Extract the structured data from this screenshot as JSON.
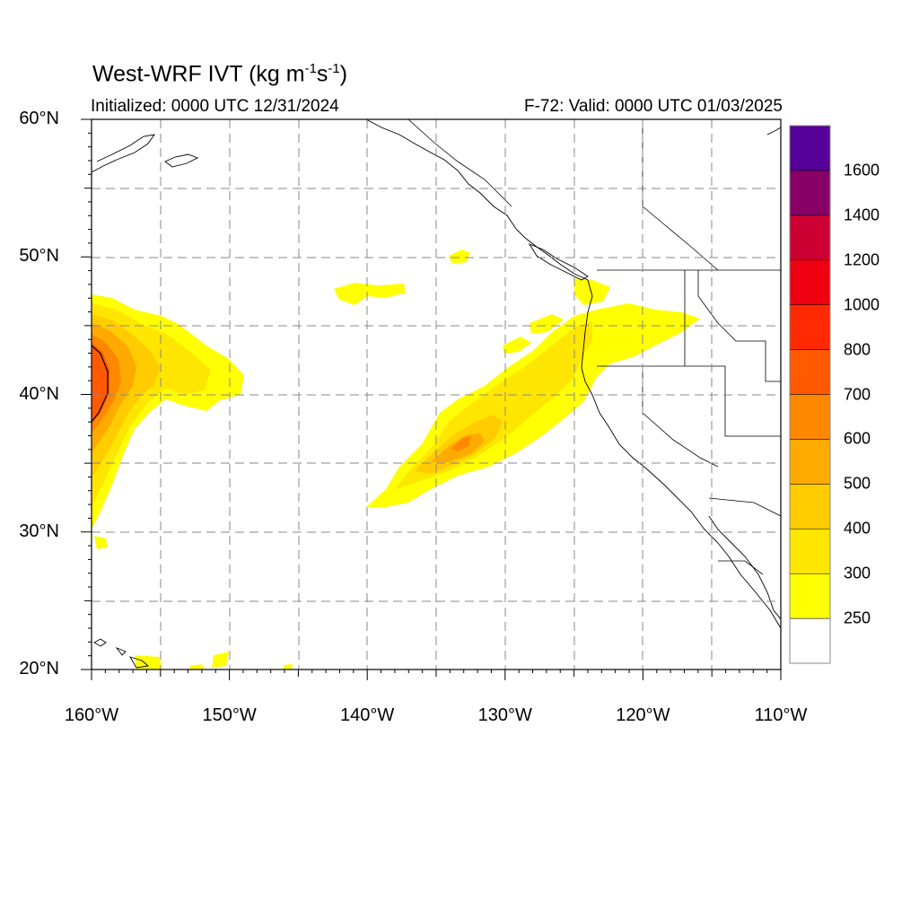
{
  "header": {
    "title_prefix": "West-WRF IVT (kg m",
    "title_sup1": "-1",
    "title_mid": "s",
    "title_sup2": "-1",
    "title_suffix": ")",
    "initialized": "Initialized: 0000 UTC 12/31/2024",
    "valid": "F-72: Valid: 0000 UTC 01/03/2025"
  },
  "map": {
    "lat_range": [
      20,
      60
    ],
    "lon_range": [
      -160,
      -110
    ],
    "lat_ticks": [
      {
        "value": 60,
        "label": "60°N"
      },
      {
        "value": 50,
        "label": "50°N"
      },
      {
        "value": 40,
        "label": "40°N"
      },
      {
        "value": 30,
        "label": "30°N"
      },
      {
        "value": 20,
        "label": "20°N"
      }
    ],
    "lon_ticks": [
      {
        "value": -160,
        "label": "160°W"
      },
      {
        "value": -150,
        "label": "150°W"
      },
      {
        "value": -140,
        "label": "140°W"
      },
      {
        "value": -130,
        "label": "130°W"
      },
      {
        "value": -120,
        "label": "120°W"
      },
      {
        "value": -110,
        "label": "110°W"
      }
    ],
    "grid": true
  },
  "colorbar": {
    "levels": [
      {
        "label": "",
        "color": "#ffffff"
      },
      {
        "label": "250",
        "color": "#ffff00"
      },
      {
        "label": "300",
        "color": "#ffe600"
      },
      {
        "label": "400",
        "color": "#ffcc00"
      },
      {
        "label": "500",
        "color": "#ffaa00"
      },
      {
        "label": "600",
        "color": "#ff8800"
      },
      {
        "label": "700",
        "color": "#ff5a00"
      },
      {
        "label": "800",
        "color": "#ff2a00"
      },
      {
        "label": "1000",
        "color": "#ee0011"
      },
      {
        "label": "1200",
        "color": "#cc0033"
      },
      {
        "label": "1400",
        "color": "#880066"
      },
      {
        "label": "1600",
        "color": "#550099"
      }
    ]
  }
}
